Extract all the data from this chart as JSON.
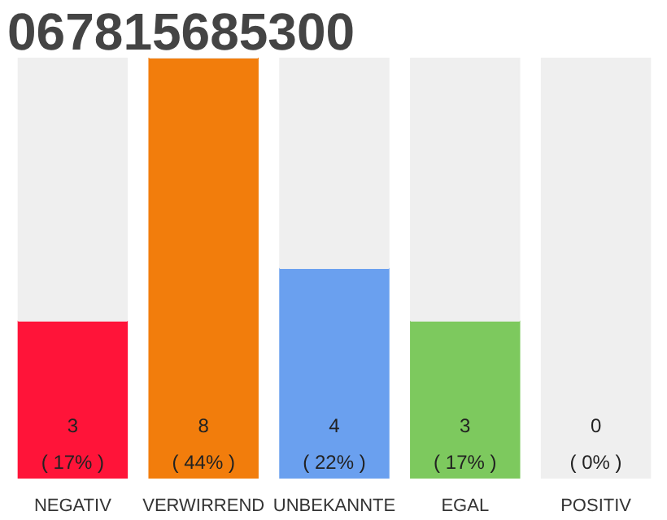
{
  "chart_data": {
    "type": "bar",
    "title": "067815685300",
    "categories": [
      "NEGATIV",
      "VERWIRREND",
      "UNBEKANNTE",
      "EGAL",
      "POSITIV"
    ],
    "stacked": true,
    "grid": false,
    "series": [
      {
        "colors": [
          "#ff1439",
          "#f27d0c",
          "#6aa0ef",
          "#7dc95e",
          "#efefef"
        ],
        "values": [
          3,
          8,
          4,
          3,
          0
        ],
        "value_labels": [
          "3\n( 17% )",
          "8\n( 44% )",
          "4\n( 22% )",
          "3\n( 17% )",
          "0\n( 0% )"
        ]
      },
      {
        "color": "#efefef",
        "values": [
          5,
          0,
          4,
          5,
          8
        ]
      }
    ]
  }
}
